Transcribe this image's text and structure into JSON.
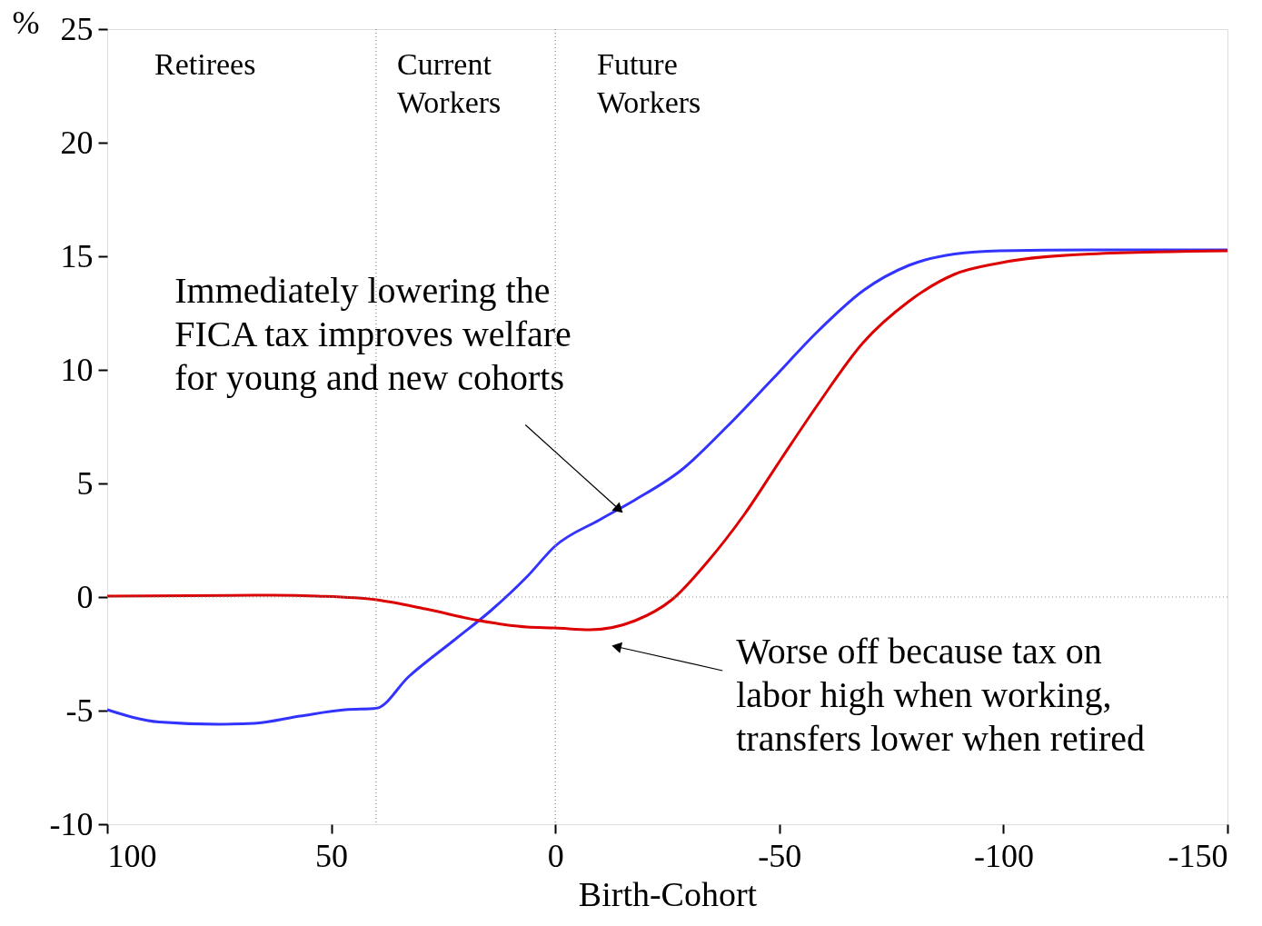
{
  "chart_data": {
    "type": "line",
    "xlabel": "Birth-Cohort",
    "ylabel": "%",
    "xlim": [
      100,
      -150
    ],
    "xticks": [
      100,
      50,
      0,
      -50,
      -100,
      -150
    ],
    "ylim": [
      -10,
      25
    ],
    "yticks": [
      -10,
      -5,
      0,
      5,
      10,
      15,
      20,
      25
    ],
    "grid": false,
    "legend": false,
    "marker": "none",
    "line_style": "solid",
    "series": [
      {
        "color": "#3333ff",
        "x": [
          100,
          88.4,
          75.3,
          67.2,
          57,
          46.9,
          40,
          32.7,
          22.6,
          14.4,
          6.3,
          0,
          -9.9,
          -18,
          -28.2,
          -38.3,
          -48.5,
          -58.6,
          -68.8,
          -78.9,
          -89.1,
          -99.1,
          -119.4,
          -150
        ],
        "values": [
          -4.96,
          -5.5,
          -5.6,
          -5.56,
          -5.24,
          -4.96,
          -4.9,
          -3.5,
          -1.9,
          -0.6,
          0.9,
          2.25,
          3.4,
          4.3,
          5.6,
          7.5,
          9.6,
          11.7,
          13.5,
          14.6,
          15.1,
          15.24,
          15.28,
          15.28
        ]
      },
      {
        "color": "#dd0000",
        "x": [
          100,
          63.1,
          53,
          40,
          29,
          16.9,
          6.3,
          0,
          -7.7,
          -17.8,
          -26,
          -34,
          -42.2,
          -50.4,
          -58.6,
          -68.7,
          -78.8,
          -89,
          -99.1,
          -119.4,
          -150
        ],
        "values": [
          0.04,
          0.08,
          0.04,
          -0.12,
          -0.52,
          -1.04,
          -1.32,
          -1.36,
          -1.44,
          -1.04,
          -0.12,
          1.56,
          3.64,
          6.08,
          8.48,
          11.2,
          13,
          14.2,
          14.7,
          15.1,
          15.24
        ]
      }
    ],
    "ref_lines": [
      {
        "axis": "x",
        "value": 40,
        "color": "#888888",
        "line_style": "dotted"
      },
      {
        "axis": "x",
        "value": 0,
        "color": "#888888",
        "line_style": "dotted"
      },
      {
        "axis": "y",
        "value": 0,
        "color": "#888888",
        "line_style": "dotted"
      }
    ],
    "annotations": [
      "Retirees",
      "Current\nWorkers",
      "Future\nWorkers",
      {
        "text": "Immediately lowering the\nFICA tax improves welfare\nfor young and new cohorts",
        "x": -14,
        "y": 3.9
      },
      {
        "text": "Worse off because tax on\nlabor high when working,\ntransfers lower when retired",
        "x": -14,
        "y": -2.2
      }
    ]
  }
}
